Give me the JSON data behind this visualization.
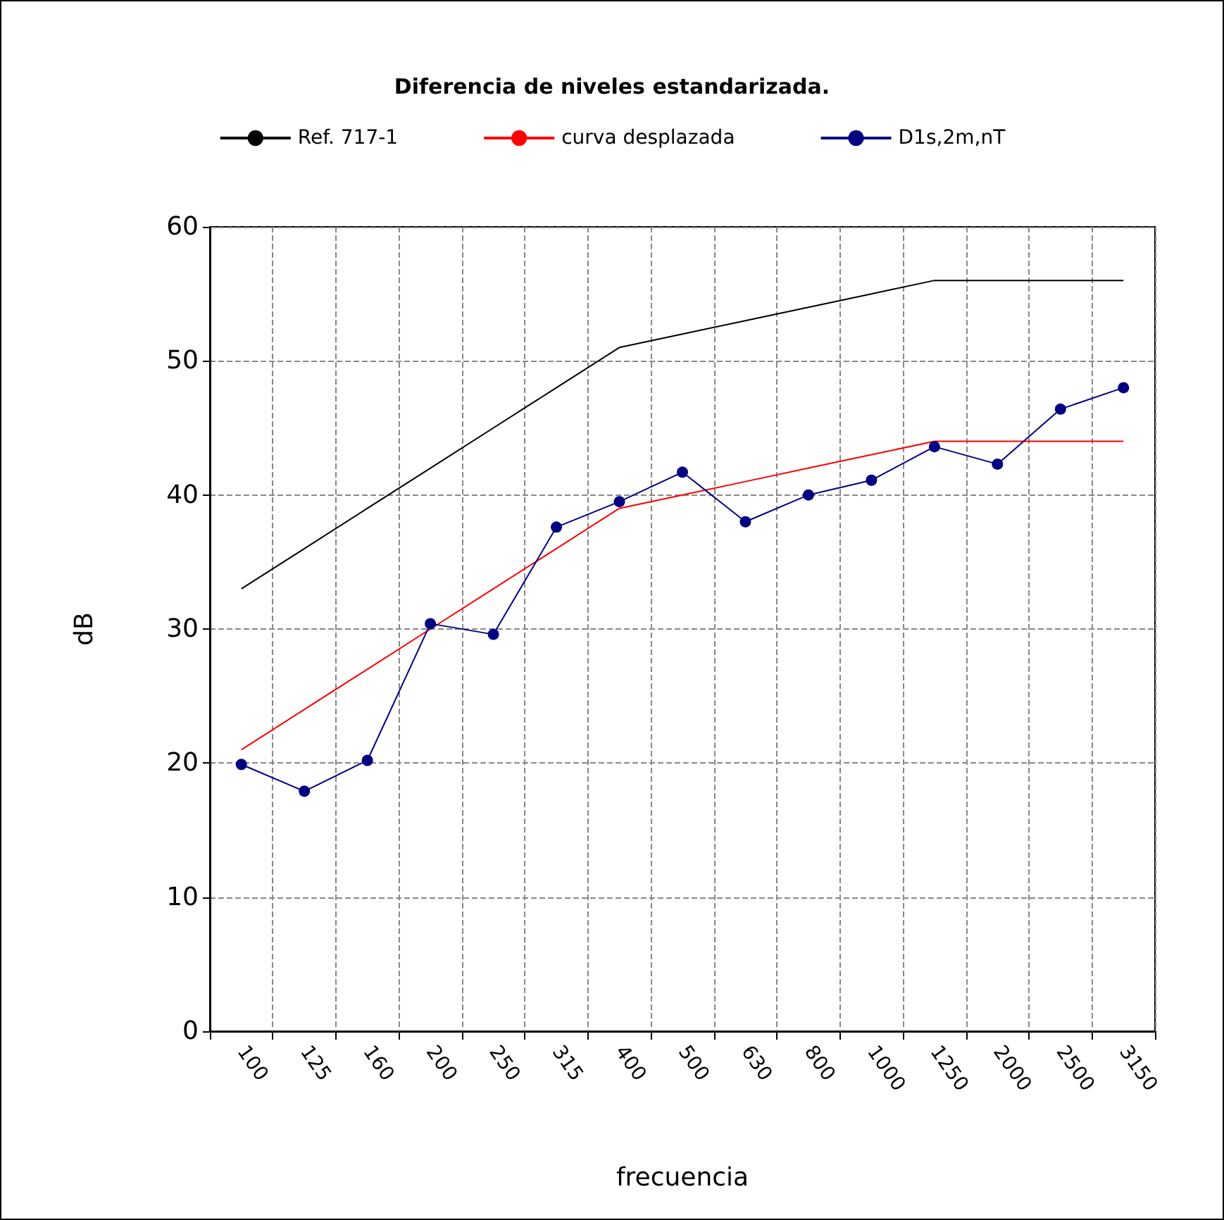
{
  "chart_data": {
    "type": "line",
    "title": "Diferencia de niveles estandarizada.",
    "xlabel": "frecuencia",
    "ylabel": "dB",
    "categories": [
      "100",
      "125",
      "160",
      "200",
      "250",
      "315",
      "400",
      "500",
      "630",
      "800",
      "1000",
      "1250",
      "2000",
      "2500",
      "3150"
    ],
    "series": [
      {
        "name": "Ref. 717-1",
        "color": "#000000",
        "marker": "none",
        "values": [
          33,
          36,
          39,
          42,
          45,
          48,
          51,
          52,
          53,
          54,
          55,
          56,
          56,
          56,
          56
        ]
      },
      {
        "name": "curva desplazada",
        "color": "#ff0000",
        "marker": "none",
        "values": [
          21,
          24,
          27,
          30,
          33,
          36,
          39,
          40,
          41,
          42,
          43,
          44,
          44,
          44,
          44
        ]
      },
      {
        "name": "D1s,2m,nT",
        "color": "#000080",
        "marker": "circle",
        "values": [
          19.9,
          17.9,
          20.2,
          30.4,
          29.6,
          37.6,
          39.5,
          41.7,
          38.0,
          40.0,
          41.1,
          43.6,
          42.3,
          46.4,
          48.0
        ]
      }
    ],
    "ylim": [
      0,
      60
    ],
    "yticks": [
      0,
      10,
      20,
      30,
      40,
      50,
      60
    ],
    "grid": true,
    "legend": "top"
  }
}
